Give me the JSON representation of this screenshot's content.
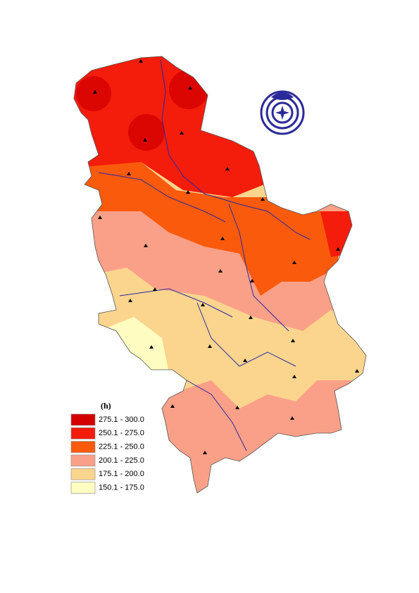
{
  "legend": {
    "title": "(h)",
    "items": [
      {
        "label": "275.1 - 300.0",
        "color": "#d40000"
      },
      {
        "label": "250.1 - 275.0",
        "color": "#f41c0a"
      },
      {
        "label": "225.1 - 250.0",
        "color": "#fa5a0c"
      },
      {
        "label": "200.1 - 225.0",
        "color": "#fba088"
      },
      {
        "label": "175.1 - 200.0",
        "color": "#fbd58e"
      },
      {
        "label": "150.1 - 175.0",
        "color": "#fefcc0"
      }
    ]
  }
}
